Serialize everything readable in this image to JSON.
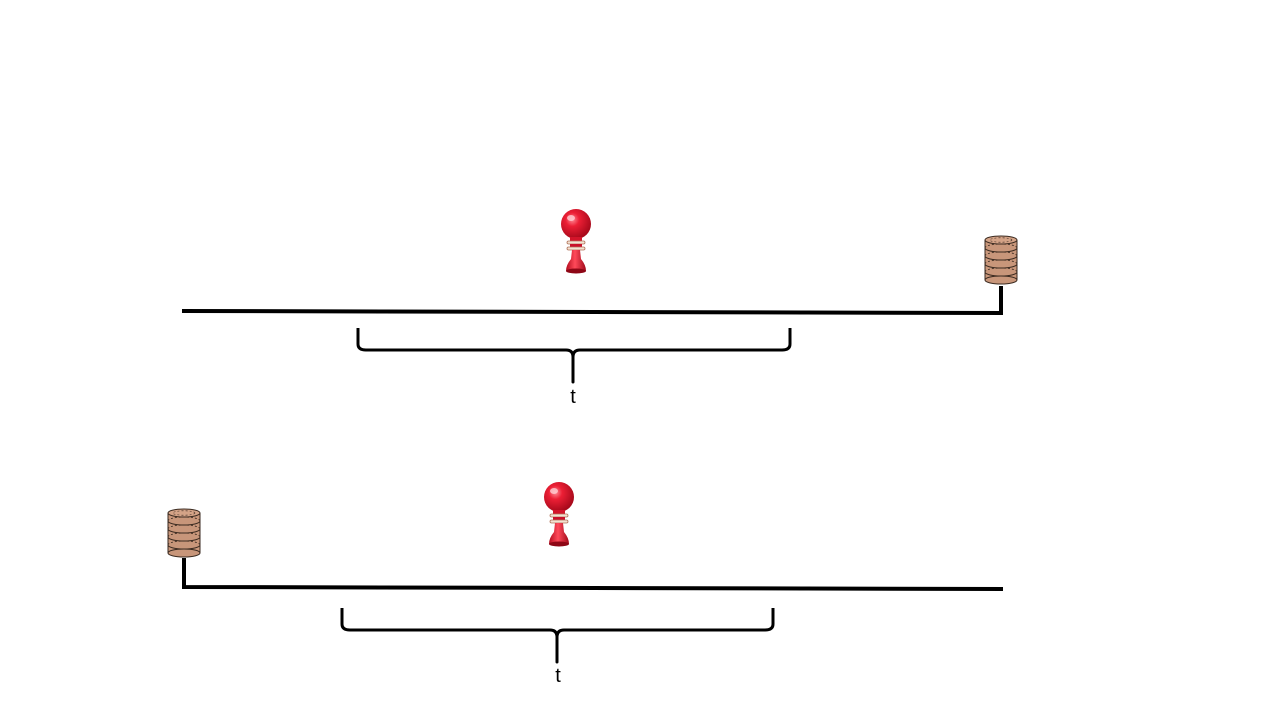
{
  "colors": {
    "line": "#000000",
    "pawn": "#e0192e",
    "coin": "#c8967a"
  },
  "icons": {
    "marker": "red-pawn-icon",
    "stack": "coin-stack-icon"
  },
  "panels": [
    {
      "brace_label": "t",
      "stack_side": "right"
    },
    {
      "brace_label": "t",
      "stack_side": "left"
    }
  ]
}
